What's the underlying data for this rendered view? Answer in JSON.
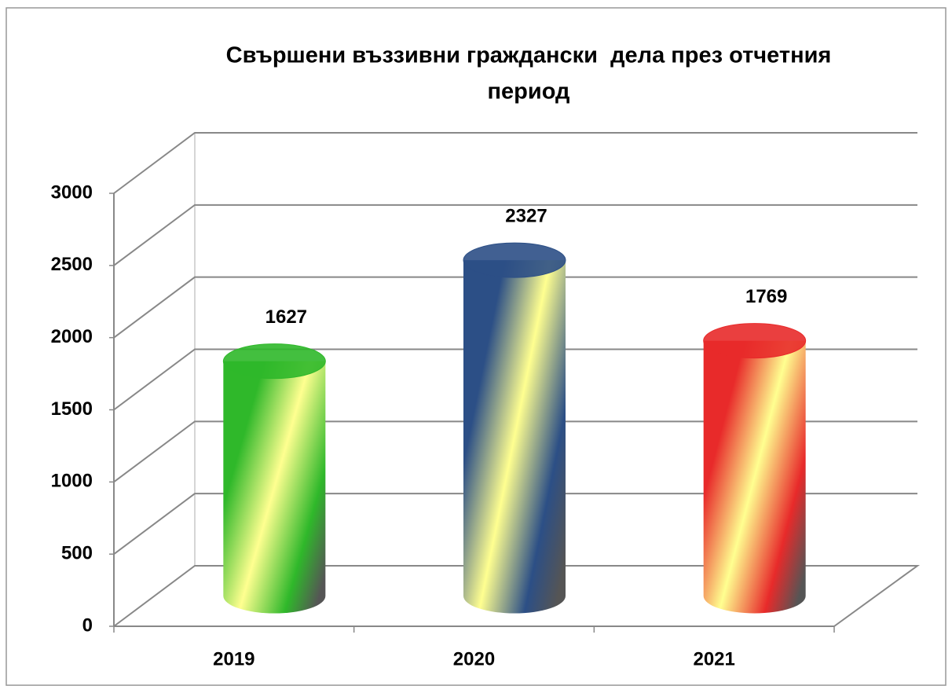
{
  "chart_data": {
    "type": "cylinder",
    "title": "Свършени въззивни граждански  дела през отчетния период",
    "categories": [
      "2019",
      "2020",
      "2021"
    ],
    "values": [
      1627,
      2327,
      1769
    ],
    "colors": [
      "#2fb82a",
      "#2c4f86",
      "#e82a2a"
    ],
    "ylim": [
      0,
      3000
    ],
    "yticks": [
      0,
      500,
      1000,
      1500,
      2000,
      2500,
      3000
    ],
    "grid": true
  }
}
